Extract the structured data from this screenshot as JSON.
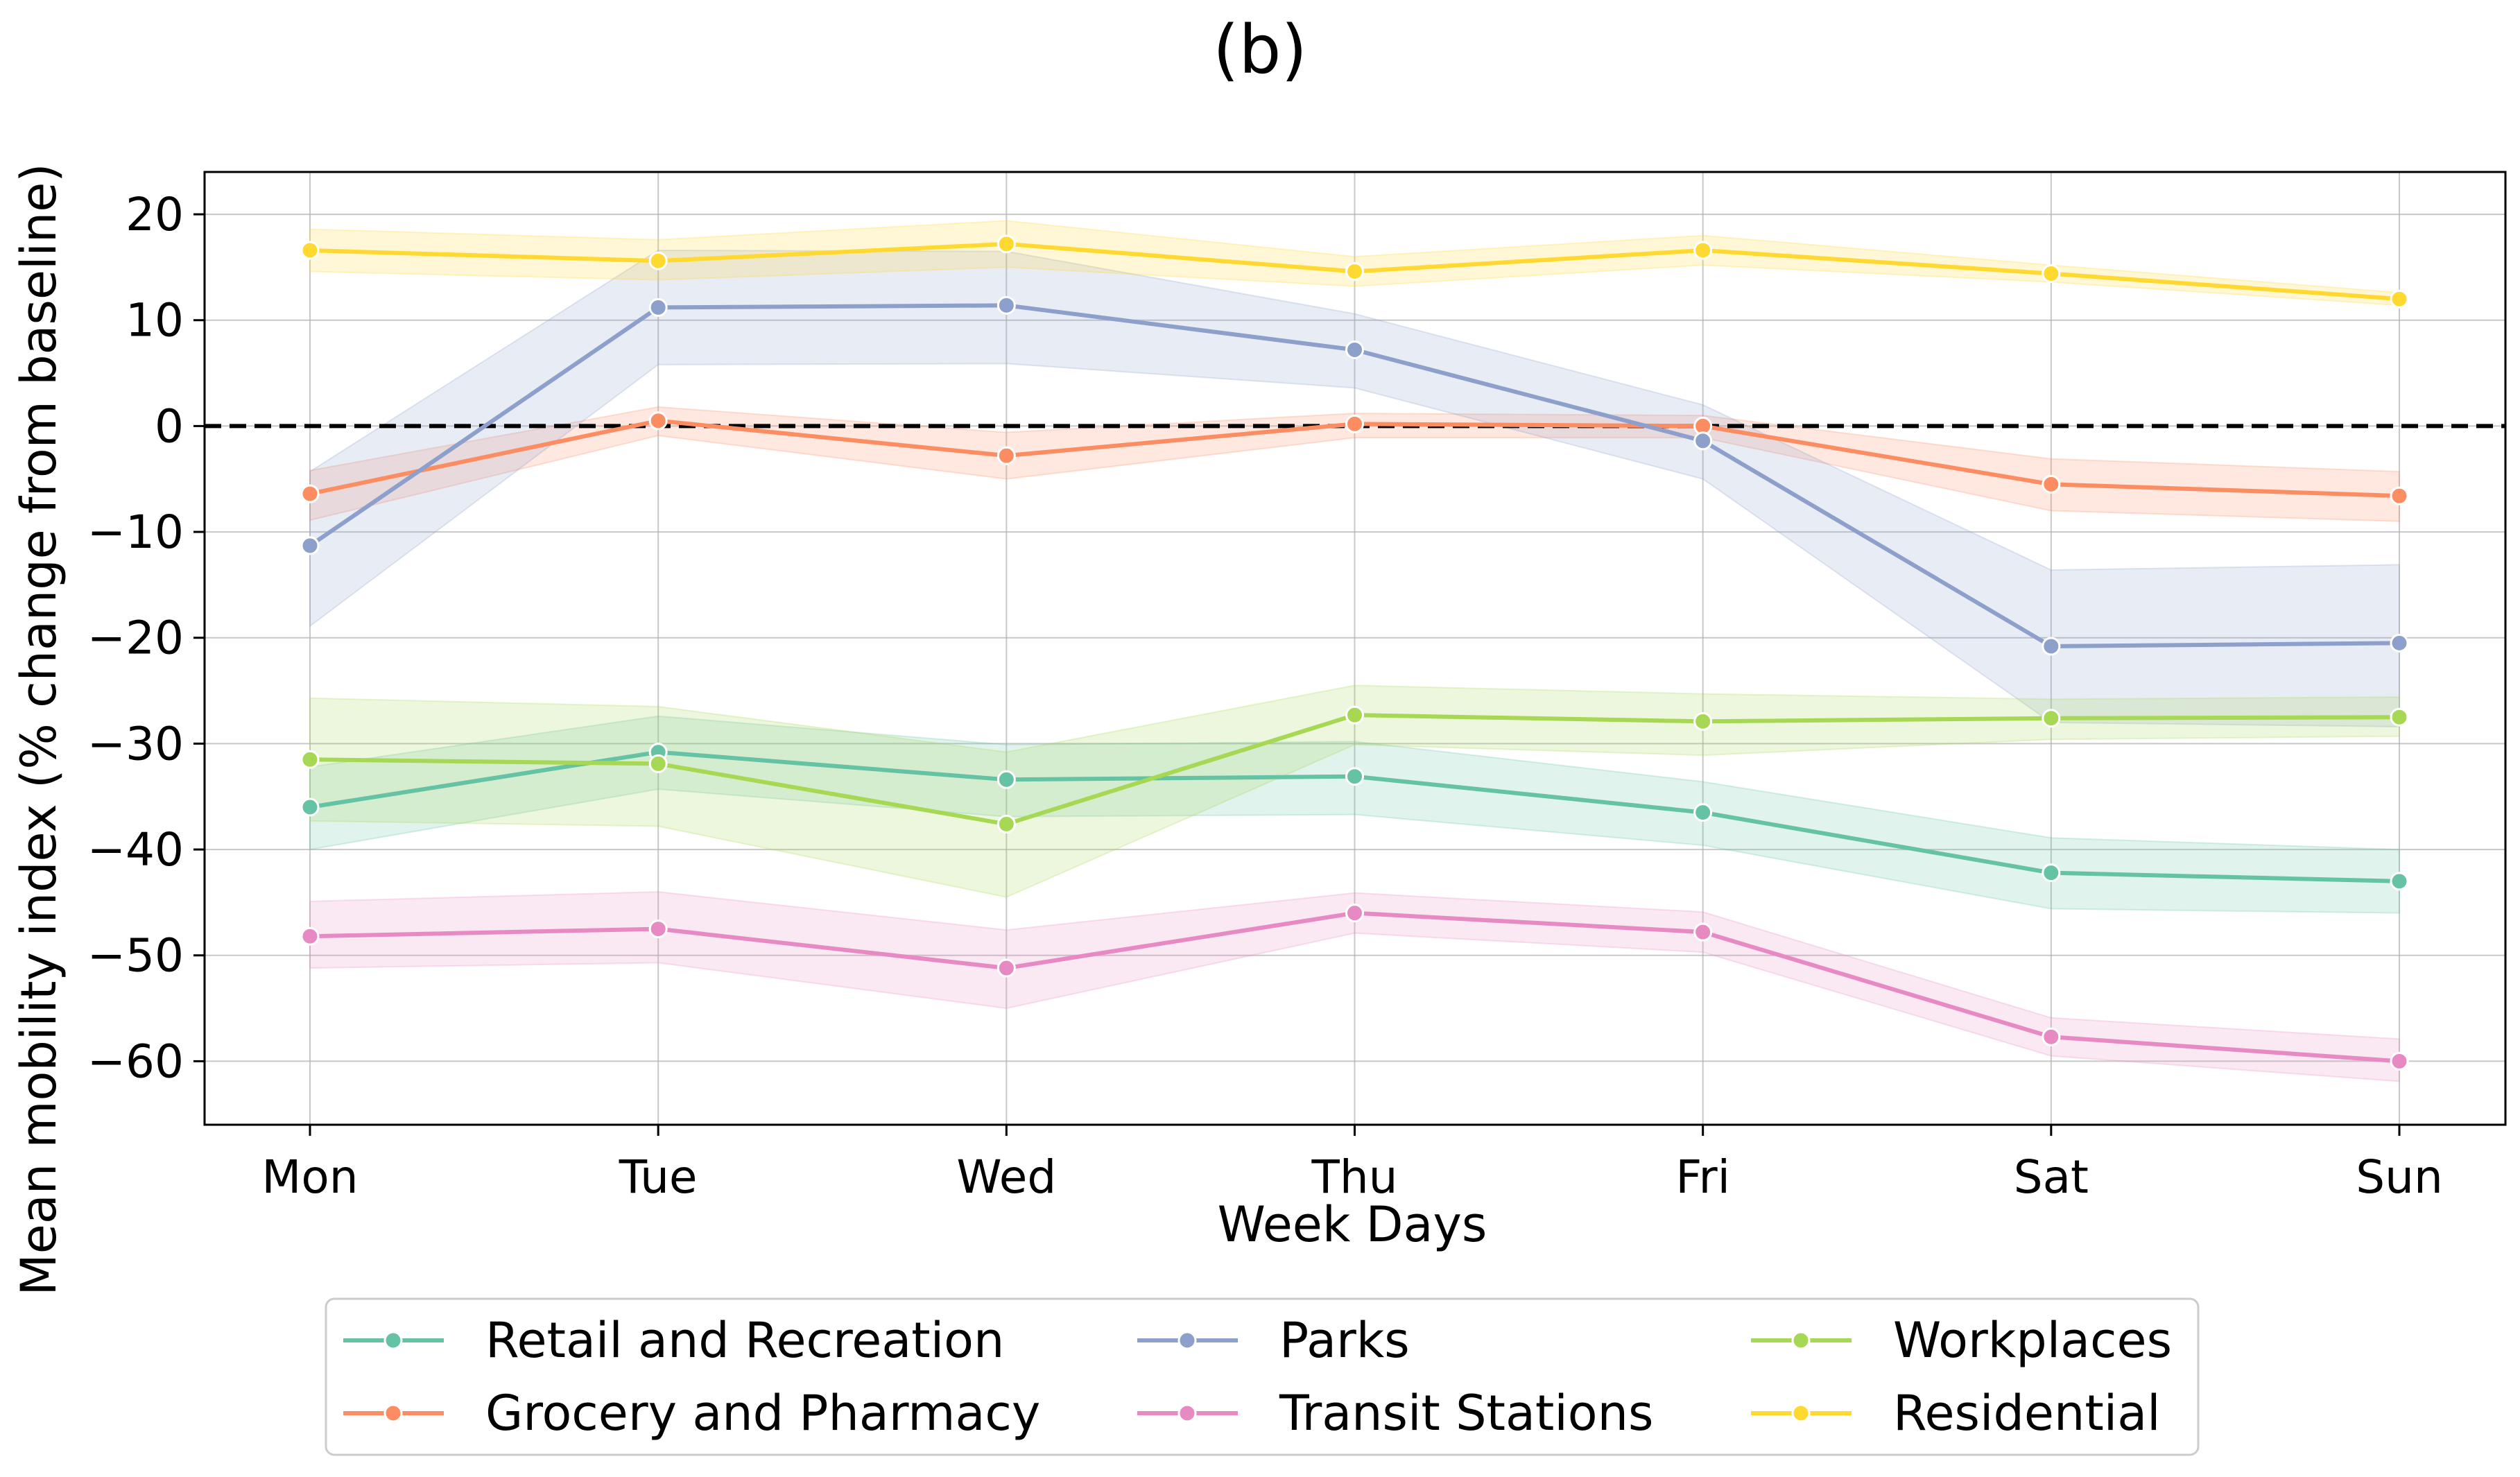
{
  "chart_data": {
    "type": "line",
    "title": "(b)",
    "xlabel": "Week Days",
    "ylabel": "Mean mobility index (% change from baseline)",
    "categories": [
      "Mon",
      "Tue",
      "Wed",
      "Thu",
      "Fri",
      "Sat",
      "Sun"
    ],
    "ylim": [
      -66,
      24
    ],
    "yticks": [
      20,
      10,
      0,
      -10,
      -20,
      -30,
      -40,
      -50,
      -60
    ],
    "ytick_labels": [
      "20",
      "10",
      "0",
      "−10",
      "−20",
      "−30",
      "−40",
      "−50",
      "−60"
    ],
    "grid": true,
    "reference_line": {
      "y": 0,
      "style": "dashed",
      "color": "#000000"
    },
    "legend": {
      "placement": "bottom-center, outside plot, 3 columns"
    },
    "series": [
      {
        "name": "Retail and Recreation",
        "color": "#66c2a5",
        "values": [
          -36.0,
          -30.8,
          -33.4,
          -33.1,
          -36.5,
          -42.2,
          -43.0
        ],
        "lower": [
          -40.0,
          -34.3,
          -36.9,
          -36.7,
          -39.6,
          -45.6,
          -46.0
        ],
        "upper": [
          -32.2,
          -27.4,
          -30.1,
          -29.8,
          -33.6,
          -38.9,
          -40.0
        ]
      },
      {
        "name": "Grocery and Pharmacy",
        "color": "#fc8d62",
        "values": [
          -6.4,
          0.5,
          -2.8,
          0.2,
          0.0,
          -5.5,
          -6.6
        ],
        "lower": [
          -8.9,
          -0.9,
          -5.0,
          -1.1,
          -1.1,
          -8.0,
          -9.0
        ],
        "upper": [
          -4.2,
          1.8,
          -0.6,
          1.2,
          1.0,
          -3.1,
          -4.3
        ]
      },
      {
        "name": "Parks",
        "color": "#8da0cb",
        "values": [
          -11.3,
          11.2,
          11.4,
          7.2,
          -1.4,
          -20.8,
          -20.5
        ],
        "lower": [
          -18.9,
          5.8,
          5.9,
          3.6,
          -5.0,
          -28.0,
          -28.4
        ],
        "upper": [
          -4.3,
          16.6,
          16.5,
          10.6,
          2.0,
          -13.6,
          -13.1
        ]
      },
      {
        "name": "Transit Stations",
        "color": "#e78ac3",
        "values": [
          -48.2,
          -47.5,
          -51.2,
          -46.0,
          -47.8,
          -57.7,
          -60.0
        ],
        "lower": [
          -51.2,
          -50.7,
          -55.0,
          -47.9,
          -49.7,
          -59.5,
          -61.9
        ],
        "upper": [
          -44.9,
          -44.0,
          -47.6,
          -44.1,
          -45.9,
          -55.9,
          -57.9
        ]
      },
      {
        "name": "Workplaces",
        "color": "#a6d854",
        "values": [
          -31.5,
          -31.9,
          -37.6,
          -27.3,
          -27.9,
          -27.6,
          -27.5
        ],
        "lower": [
          -37.3,
          -37.8,
          -44.5,
          -30.1,
          -31.1,
          -29.6,
          -29.3
        ],
        "upper": [
          -25.7,
          -26.5,
          -30.8,
          -24.5,
          -25.3,
          -25.8,
          -25.6
        ]
      },
      {
        "name": "Residential",
        "color": "#ffd92f",
        "values": [
          16.6,
          15.6,
          17.2,
          14.6,
          16.6,
          14.4,
          12.0
        ],
        "lower": [
          14.6,
          13.8,
          15.0,
          13.2,
          15.2,
          13.6,
          11.4
        ],
        "upper": [
          18.6,
          17.6,
          19.4,
          16.0,
          18.0,
          15.2,
          12.6
        ]
      }
    ]
  }
}
